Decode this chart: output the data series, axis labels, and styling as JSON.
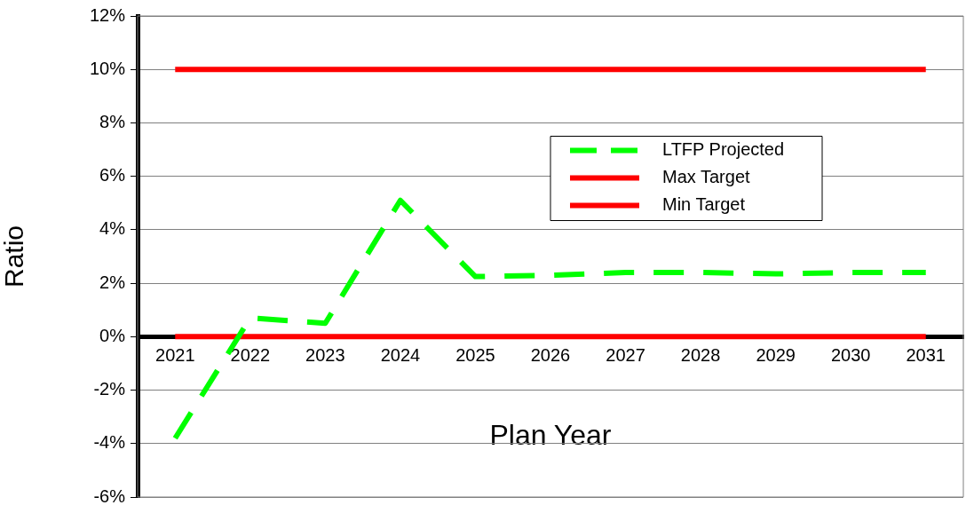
{
  "chart_data": {
    "type": "line",
    "xlabel": "Plan Year",
    "ylabel": "Ratio",
    "categories": [
      "2021",
      "2022",
      "2023",
      "2024",
      "2025",
      "2026",
      "2027",
      "2028",
      "2029",
      "2030",
      "2031"
    ],
    "series": [
      {
        "name": "LTFP Projected",
        "color": "#00ff00",
        "line_style": "dashed",
        "values": [
          -3.8,
          0.7,
          0.5,
          5.1,
          2.25,
          2.3,
          2.4,
          2.4,
          2.35,
          2.4,
          2.4
        ]
      },
      {
        "name": "Max Target",
        "color": "#ff0000",
        "line_style": "solid",
        "values": [
          10,
          10,
          10,
          10,
          10,
          10,
          10,
          10,
          10,
          10,
          10
        ]
      },
      {
        "name": "Min Target",
        "color": "#ff0000",
        "line_style": "solid",
        "values": [
          0,
          0,
          0,
          0,
          0,
          0,
          0,
          0,
          0,
          0,
          0
        ]
      }
    ],
    "ylim": [
      -6,
      12
    ],
    "yticks": [
      {
        "value": -6,
        "label": "-6%"
      },
      {
        "value": -4,
        "label": "-4%"
      },
      {
        "value": -2,
        "label": "-2%"
      },
      {
        "value": 0,
        "label": "0%"
      },
      {
        "value": 2,
        "label": "2%"
      },
      {
        "value": 4,
        "label": "4%"
      },
      {
        "value": 6,
        "label": "6%"
      },
      {
        "value": 8,
        "label": "8%"
      },
      {
        "value": 10,
        "label": "10%"
      },
      {
        "value": 12,
        "label": "12%"
      }
    ],
    "grid": "y",
    "legend": "top right",
    "marker": "none"
  }
}
